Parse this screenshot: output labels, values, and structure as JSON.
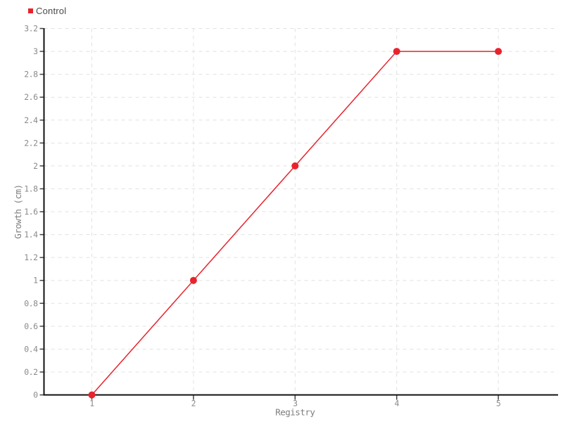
{
  "legend": {
    "items": [
      {
        "label": "Control",
        "color": "#e8232d"
      }
    ]
  },
  "chart_data": {
    "type": "line",
    "title": "",
    "xlabel": "Registry",
    "ylabel": "Growth (cm)",
    "x": [
      1,
      2,
      3,
      4,
      5
    ],
    "x_tick_labels": [
      "1",
      "2",
      "3",
      "4",
      "5"
    ],
    "y_ticks": [
      0,
      0.2,
      0.4,
      0.6,
      0.8,
      1,
      1.2,
      1.4,
      1.6,
      1.8,
      2,
      2.2,
      2.4,
      2.6,
      2.8,
      3,
      3.2
    ],
    "ylim": [
      0,
      3.2
    ],
    "series": [
      {
        "name": "Control",
        "color": "#e8232d",
        "values": [
          0,
          1,
          2,
          3,
          3
        ]
      }
    ],
    "grid": "dashed",
    "grid_color": "#e1e1e1",
    "axis_color": "#111111",
    "tick_label_color": "#8a8a8a",
    "legend_position": "top-left"
  }
}
